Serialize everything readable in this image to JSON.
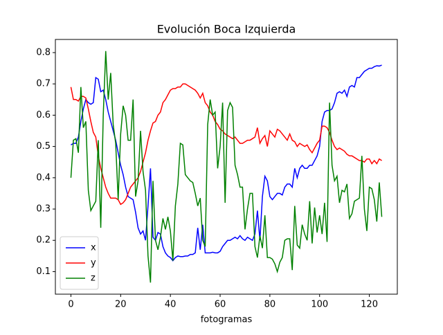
{
  "chart_data": {
    "type": "line",
    "title": "Evolución Boca Izquierda",
    "xlabel": "fotogramas",
    "x": [
      0,
      1,
      2,
      3,
      4,
      5,
      6,
      7,
      8,
      9,
      10,
      11,
      12,
      13,
      14,
      15,
      16,
      17,
      18,
      19,
      20,
      21,
      22,
      23,
      24,
      25,
      26,
      27,
      28,
      29,
      30,
      31,
      32,
      33,
      34,
      35,
      36,
      37,
      38,
      39,
      40,
      41,
      42,
      43,
      44,
      45,
      46,
      47,
      48,
      49,
      50,
      51,
      52,
      53,
      54,
      55,
      56,
      57,
      58,
      59,
      60,
      61,
      62,
      63,
      64,
      65,
      66,
      67,
      68,
      69,
      70,
      71,
      72,
      73,
      74,
      75,
      76,
      77,
      78,
      79,
      80,
      81,
      82,
      83,
      84,
      85,
      86,
      87,
      88,
      89,
      90,
      91,
      92,
      93,
      94,
      95,
      96,
      97,
      98,
      99,
      100,
      101,
      102,
      103,
      104,
      105,
      106,
      107,
      108,
      109,
      110,
      111,
      112,
      113,
      114,
      115,
      116,
      117,
      118,
      119,
      120,
      121,
      122,
      123,
      124,
      125
    ],
    "series": [
      {
        "name": "x",
        "color": "#0000ff",
        "values": [
          0.505,
          0.51,
          0.51,
          0.53,
          0.58,
          0.62,
          0.65,
          0.64,
          0.635,
          0.64,
          0.72,
          0.715,
          0.675,
          0.68,
          0.65,
          0.61,
          0.58,
          0.55,
          0.52,
          0.48,
          0.44,
          0.41,
          0.37,
          0.34,
          0.335,
          0.33,
          0.29,
          0.24,
          0.22,
          0.23,
          0.2,
          0.31,
          0.43,
          0.21,
          0.2,
          0.225,
          0.22,
          0.18,
          0.16,
          0.15,
          0.145,
          0.135,
          0.145,
          0.15,
          0.148,
          0.148,
          0.15,
          0.15,
          0.155,
          0.155,
          0.16,
          0.24,
          0.17,
          0.25,
          0.16,
          0.16,
          0.16,
          0.162,
          0.16,
          0.16,
          0.165,
          0.18,
          0.19,
          0.2,
          0.2,
          0.205,
          0.21,
          0.205,
          0.215,
          0.205,
          0.2,
          0.21,
          0.205,
          0.2,
          0.22,
          0.295,
          0.2,
          0.34,
          0.405,
          0.39,
          0.34,
          0.33,
          0.34,
          0.35,
          0.35,
          0.345,
          0.37,
          0.38,
          0.38,
          0.37,
          0.43,
          0.4,
          0.43,
          0.44,
          0.43,
          0.43,
          0.44,
          0.44,
          0.455,
          0.47,
          0.5,
          0.58,
          0.61,
          0.615,
          0.615,
          0.62,
          0.64,
          0.67,
          0.675,
          0.67,
          0.68,
          0.66,
          0.69,
          0.695,
          0.69,
          0.72,
          0.72,
          0.73,
          0.74,
          0.745,
          0.75,
          0.75,
          0.755,
          0.758,
          0.757,
          0.76
        ]
      },
      {
        "name": "y",
        "color": "#ff0000",
        "values": [
          0.69,
          0.65,
          0.65,
          0.645,
          0.66,
          0.66,
          0.655,
          0.62,
          0.58,
          0.545,
          0.53,
          0.47,
          0.43,
          0.4,
          0.37,
          0.35,
          0.335,
          0.335,
          0.335,
          0.33,
          0.315,
          0.32,
          0.33,
          0.35,
          0.37,
          0.38,
          0.39,
          0.4,
          0.42,
          0.45,
          0.48,
          0.52,
          0.55,
          0.575,
          0.58,
          0.6,
          0.61,
          0.64,
          0.65,
          0.665,
          0.68,
          0.685,
          0.685,
          0.69,
          0.69,
          0.7,
          0.7,
          0.695,
          0.69,
          0.685,
          0.68,
          0.67,
          0.655,
          0.67,
          0.64,
          0.63,
          0.61,
          0.6,
          0.58,
          0.57,
          0.555,
          0.55,
          0.54,
          0.535,
          0.53,
          0.525,
          0.53,
          0.52,
          0.51,
          0.51,
          0.515,
          0.52,
          0.52,
          0.525,
          0.53,
          0.56,
          0.51,
          0.525,
          0.535,
          0.5,
          0.55,
          0.54,
          0.53,
          0.555,
          0.55,
          0.54,
          0.53,
          0.52,
          0.54,
          0.52,
          0.515,
          0.5,
          0.51,
          0.505,
          0.5,
          0.505,
          0.49,
          0.48,
          0.495,
          0.51,
          0.52,
          0.565,
          0.565,
          0.56,
          0.545,
          0.52,
          0.5,
          0.49,
          0.495,
          0.49,
          0.485,
          0.475,
          0.47,
          0.47,
          0.465,
          0.46,
          0.455,
          0.455,
          0.45,
          0.46,
          0.46,
          0.445,
          0.455,
          0.445,
          0.46,
          0.455
        ]
      },
      {
        "name": "z",
        "color": "#008000",
        "values": [
          0.4,
          0.52,
          0.525,
          0.48,
          0.69,
          0.56,
          0.58,
          0.36,
          0.295,
          0.31,
          0.325,
          0.52,
          0.24,
          0.6,
          0.805,
          0.65,
          0.735,
          0.57,
          0.51,
          0.33,
          0.54,
          0.63,
          0.6,
          0.52,
          0.52,
          0.65,
          0.34,
          0.39,
          0.55,
          0.42,
          0.36,
          0.15,
          0.065,
          0.39,
          0.2,
          0.17,
          0.21,
          0.27,
          0.235,
          0.275,
          0.23,
          0.135,
          0.31,
          0.38,
          0.51,
          0.505,
          0.41,
          0.4,
          0.39,
          0.385,
          0.35,
          0.31,
          0.335,
          0.2,
          0.18,
          0.57,
          0.65,
          0.6,
          0.61,
          0.43,
          0.5,
          0.64,
          0.32,
          0.615,
          0.64,
          0.625,
          0.44,
          0.41,
          0.37,
          0.37,
          0.235,
          0.3,
          0.35,
          0.35,
          0.18,
          0.145,
          0.215,
          0.175,
          0.28,
          0.145,
          0.145,
          0.14,
          0.125,
          0.1,
          0.13,
          0.145,
          0.2,
          0.205,
          0.205,
          0.105,
          0.31,
          0.185,
          0.175,
          0.25,
          0.22,
          0.2,
          0.325,
          0.19,
          0.305,
          0.225,
          0.28,
          0.22,
          0.32,
          0.195,
          0.64,
          0.44,
          0.39,
          0.405,
          0.32,
          0.36,
          0.355,
          0.38,
          0.27,
          0.285,
          0.325,
          0.33,
          0.335,
          0.47,
          0.3,
          0.23,
          0.37,
          0.365,
          0.33,
          0.26,
          0.385,
          0.275
        ]
      }
    ],
    "xlim": [
      -6.25,
      131.25
    ],
    "ylim": [
      0.028,
      0.842
    ],
    "xticks": [
      0,
      20,
      40,
      60,
      80,
      100,
      120
    ],
    "yticks": [
      0.1,
      0.2,
      0.3,
      0.4,
      0.5,
      0.6,
      0.7,
      0.8
    ],
    "legend": "lower left"
  }
}
